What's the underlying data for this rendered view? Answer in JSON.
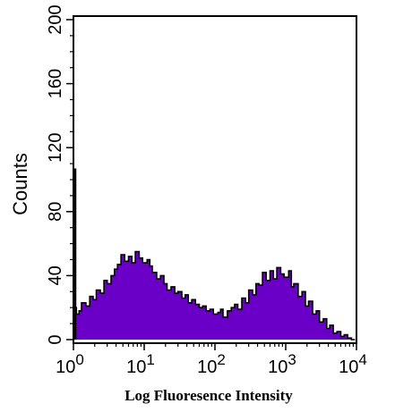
{
  "chart_data": {
    "type": "area",
    "title": "",
    "xlabel": "Log Fluoresence Intensity",
    "ylabel": "Counts",
    "x_scale": "log",
    "xlim": [
      1,
      10000
    ],
    "ylim": [
      0,
      200
    ],
    "x_ticks": [
      {
        "value": 1,
        "base": "10",
        "exp": "0"
      },
      {
        "value": 10,
        "base": "10",
        "exp": "1"
      },
      {
        "value": 100,
        "base": "10",
        "exp": "2"
      },
      {
        "value": 1000,
        "base": "10",
        "exp": "3"
      },
      {
        "value": 10000,
        "base": "10",
        "exp": "4"
      }
    ],
    "y_ticks": [
      {
        "value": 0,
        "label": "0"
      },
      {
        "value": 40,
        "label": "40"
      },
      {
        "value": 80,
        "label": "80"
      },
      {
        "value": 120,
        "label": "120"
      },
      {
        "value": 160,
        "label": "160"
      },
      {
        "value": 200,
        "label": "200"
      }
    ],
    "grid": false,
    "fill_color": "#6a00c8",
    "line_color": "#000000",
    "spike": {
      "x": 1.0,
      "y": 107
    },
    "x": [
      1.0,
      1.1,
      1.2,
      1.3,
      1.5,
      1.7,
      1.9,
      2.1,
      2.4,
      2.7,
      3.0,
      3.4,
      3.8,
      4.2,
      4.7,
      5.3,
      6.0,
      6.7,
      7.5,
      8.5,
      9.5,
      11,
      12,
      13,
      15,
      17,
      19,
      21,
      24,
      27,
      30,
      34,
      38,
      42,
      47,
      53,
      60,
      67,
      75,
      85,
      95,
      110,
      120,
      130,
      150,
      170,
      190,
      210,
      240,
      270,
      300,
      340,
      380,
      420,
      470,
      530,
      600,
      670,
      750,
      850,
      950,
      1100,
      1200,
      1300,
      1500,
      1700,
      1900,
      2100,
      2400,
      2700,
      3000,
      3400,
      3800,
      4200,
      4700,
      5300,
      6000,
      6700,
      7500,
      8500
    ],
    "y": [
      20,
      16,
      18,
      23,
      21,
      27,
      25,
      31,
      29,
      37,
      35,
      40,
      44,
      47,
      53,
      49,
      52,
      48,
      55,
      51,
      48,
      50,
      46,
      42,
      38,
      40,
      35,
      31,
      33,
      29,
      30,
      26,
      28,
      23,
      25,
      22,
      20,
      21,
      18,
      19,
      16,
      17,
      19,
      14,
      18,
      20,
      22,
      19,
      26,
      23,
      31,
      28,
      35,
      34,
      42,
      37,
      43,
      38,
      45,
      41,
      39,
      43,
      33,
      35,
      27,
      30,
      21,
      24,
      16,
      18,
      11,
      13,
      7,
      9,
      4,
      5,
      2,
      3,
      1,
      0
    ]
  }
}
